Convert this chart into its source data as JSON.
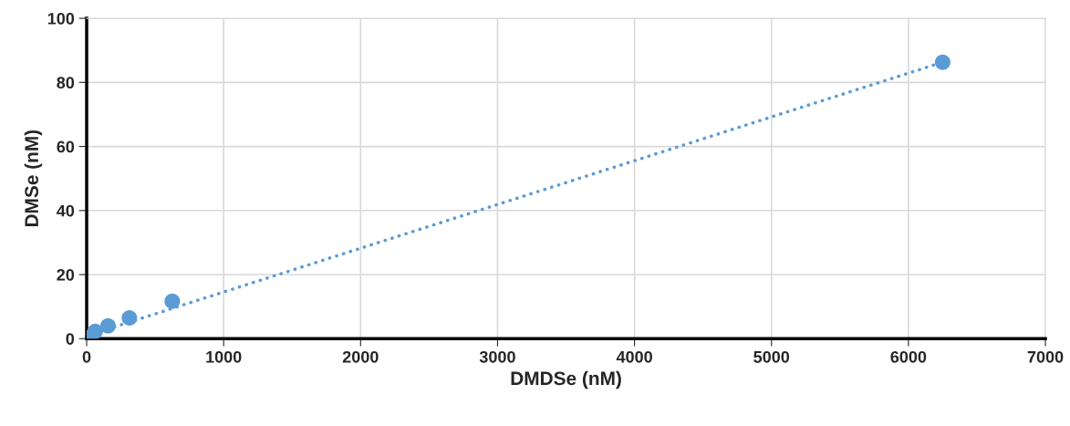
{
  "chart_data": {
    "type": "scatter",
    "xlabel": "DMDSe (nM)",
    "ylabel": "DMSe (nM)",
    "series": [
      {
        "color": "#5b9bd5",
        "x": [
          0,
          62.5,
          156,
          312,
          625,
          6250
        ],
        "values": [
          0.3,
          2.3,
          4,
          6.5,
          11.7,
          86.3
        ],
        "marker": "circle"
      },
      {
        "type": "line",
        "color": "#5b9bd5",
        "x": [
          0,
          6250
        ],
        "values": [
          0.9,
          86.3
        ],
        "line_style": "dotted",
        "marker": "none"
      }
    ],
    "xlim": [
      0,
      7000
    ],
    "xticks": [
      0,
      1000,
      2000,
      3000,
      4000,
      5000,
      6000,
      7000
    ],
    "ylim": [
      0,
      100
    ],
    "yticks": [
      0,
      20,
      40,
      60,
      80,
      100
    ],
    "grid": true
  }
}
